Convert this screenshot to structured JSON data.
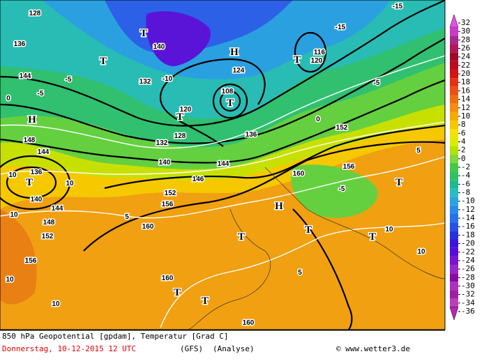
{
  "map": {
    "labels": [
      "128",
      "136",
      "144",
      "H",
      "148",
      "144",
      "T",
      "136",
      "10",
      "10",
      "144",
      "140",
      "148",
      "152",
      "10",
      "156",
      "10",
      "10",
      "T",
      "140",
      "T",
      "132",
      "-10",
      "120",
      "T",
      "124",
      "H",
      "T",
      "108",
      "128",
      "132",
      "136",
      "140",
      "144",
      "146",
      "152",
      "156",
      "160",
      "160",
      "156",
      "152",
      "116",
      "120",
      "T",
      "-15",
      "-15",
      "-5",
      "0",
      "5",
      "T",
      "H",
      "-5",
      "T",
      "T",
      "T",
      "10",
      "160",
      "T",
      "T",
      "160",
      "5",
      "-5",
      "-5",
      "0",
      "5",
      "10"
    ]
  },
  "colorbar": {
    "levels": [
      32,
      30,
      28,
      26,
      24,
      22,
      20,
      18,
      16,
      14,
      12,
      10,
      8,
      6,
      4,
      2,
      0,
      -2,
      -4,
      -6,
      -8,
      -10,
      -12,
      -14,
      -16,
      -18,
      -20,
      -22,
      -24,
      -26,
      -28,
      -30,
      -32,
      -34,
      -36
    ],
    "colors": [
      "#e650e6",
      "#c83cc8",
      "#a8288c",
      "#b4145a",
      "#a00a28",
      "#be0a1e",
      "#d21414",
      "#e63214",
      "#eb5014",
      "#f06e0f",
      "#f58c0a",
      "#f5aa05",
      "#f5c800",
      "#f5e100",
      "#dceb00",
      "#b4e100",
      "#82d73c",
      "#46c846",
      "#32c064",
      "#1eb98c",
      "#28bebe",
      "#28a5e1",
      "#288ceb",
      "#2870eb",
      "#2850e1",
      "#2832dc",
      "#3c14dc",
      "#5a0ad7",
      "#7814d2",
      "#9628cd",
      "#8c0aa0",
      "#aa32be",
      "#a01ea0",
      "#be3cbe",
      "#b428b4"
    ]
  },
  "footer": {
    "line1": "850 hPa Geopotential [gpdam], Temperatur [Grad C]",
    "date": "Donnerstag, 10-12-2015  12 UTC",
    "model": "(GFS)",
    "kind": "(Analyse)",
    "credit": "© www.wetter3.de"
  }
}
